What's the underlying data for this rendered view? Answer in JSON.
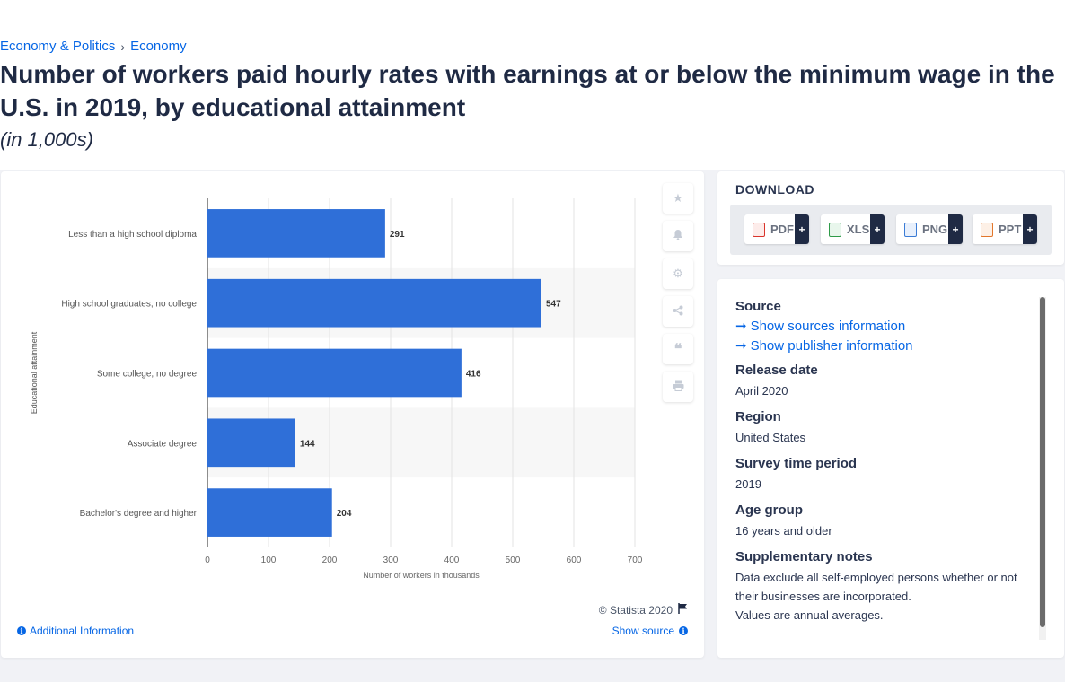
{
  "breadcrumb": {
    "item1": "Economy & Politics",
    "separator": "›",
    "item2": "Economy"
  },
  "title": "Number of workers paid hourly rates with earnings at or below the minimum wage in the U.S. in 2019, by educational attainment",
  "subtitle": "(in 1,000s)",
  "chart_data": {
    "type": "bar",
    "orientation": "horizontal",
    "categories": [
      "Less than a high school diploma",
      "High school graduates, no college",
      "Some college, no degree",
      "Associate degree",
      "Bachelor's degree and higher"
    ],
    "values": [
      291,
      547,
      416,
      144,
      204
    ],
    "xlabel": "Number of workers in thousands",
    "ylabel": "Educational attainment",
    "xlim": [
      0,
      700
    ],
    "xticks": [
      0,
      100,
      200,
      300,
      400,
      500,
      600,
      700
    ],
    "bar_color": "#2f6fd8",
    "grid": true
  },
  "chart_footer": {
    "copyright": "© Statista 2020",
    "show_source": "Show source",
    "additional_info": "Additional Information"
  },
  "toolbar_icons": [
    "star-icon",
    "bell-icon",
    "gear-icon",
    "share-icon",
    "quote-icon",
    "print-icon"
  ],
  "download": {
    "title": "DOWNLOAD",
    "buttons": [
      {
        "label": "PDF",
        "color": "#d9342b"
      },
      {
        "label": "XLS",
        "color": "#2e9a48"
      },
      {
        "label": "PNG",
        "color": "#3a7bd5"
      },
      {
        "label": "PPT",
        "color": "#e2762b"
      }
    ],
    "plus": "+"
  },
  "meta": {
    "source_label": "Source",
    "show_sources": "Show sources information",
    "show_publisher": "Show publisher information",
    "release_label": "Release date",
    "release_value": "April 2020",
    "region_label": "Region",
    "region_value": "United States",
    "survey_label": "Survey time period",
    "survey_value": "2019",
    "age_label": "Age group",
    "age_value": "16 years and older",
    "notes_label": "Supplementary notes",
    "notes_value1": "Data exclude all self-employed persons whether or not their businesses are incorporated.",
    "notes_value2": "Values are annual averages."
  }
}
